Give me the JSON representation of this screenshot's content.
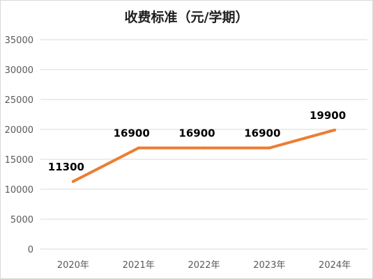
{
  "chart_data": {
    "type": "line",
    "title": "收费标准（元/学期）",
    "categories": [
      "2020年",
      "2021年",
      "2022年",
      "2023年",
      "2024年"
    ],
    "series": [
      {
        "values": [
          11300,
          16900,
          16900,
          16900,
          19900
        ]
      }
    ],
    "data_labels": [
      "11300",
      "16900",
      "16900",
      "16900",
      "19900"
    ],
    "ylim": [
      0,
      35000
    ],
    "yticks": [
      0,
      5000,
      10000,
      15000,
      20000,
      25000,
      30000,
      35000
    ],
    "ytick_labels": [
      "0",
      "5000",
      "10000",
      "15000",
      "20000",
      "25000",
      "30000",
      "35000"
    ],
    "grid": true,
    "line_color": "#ED7D31",
    "grid_color": "#d9d9d9"
  }
}
